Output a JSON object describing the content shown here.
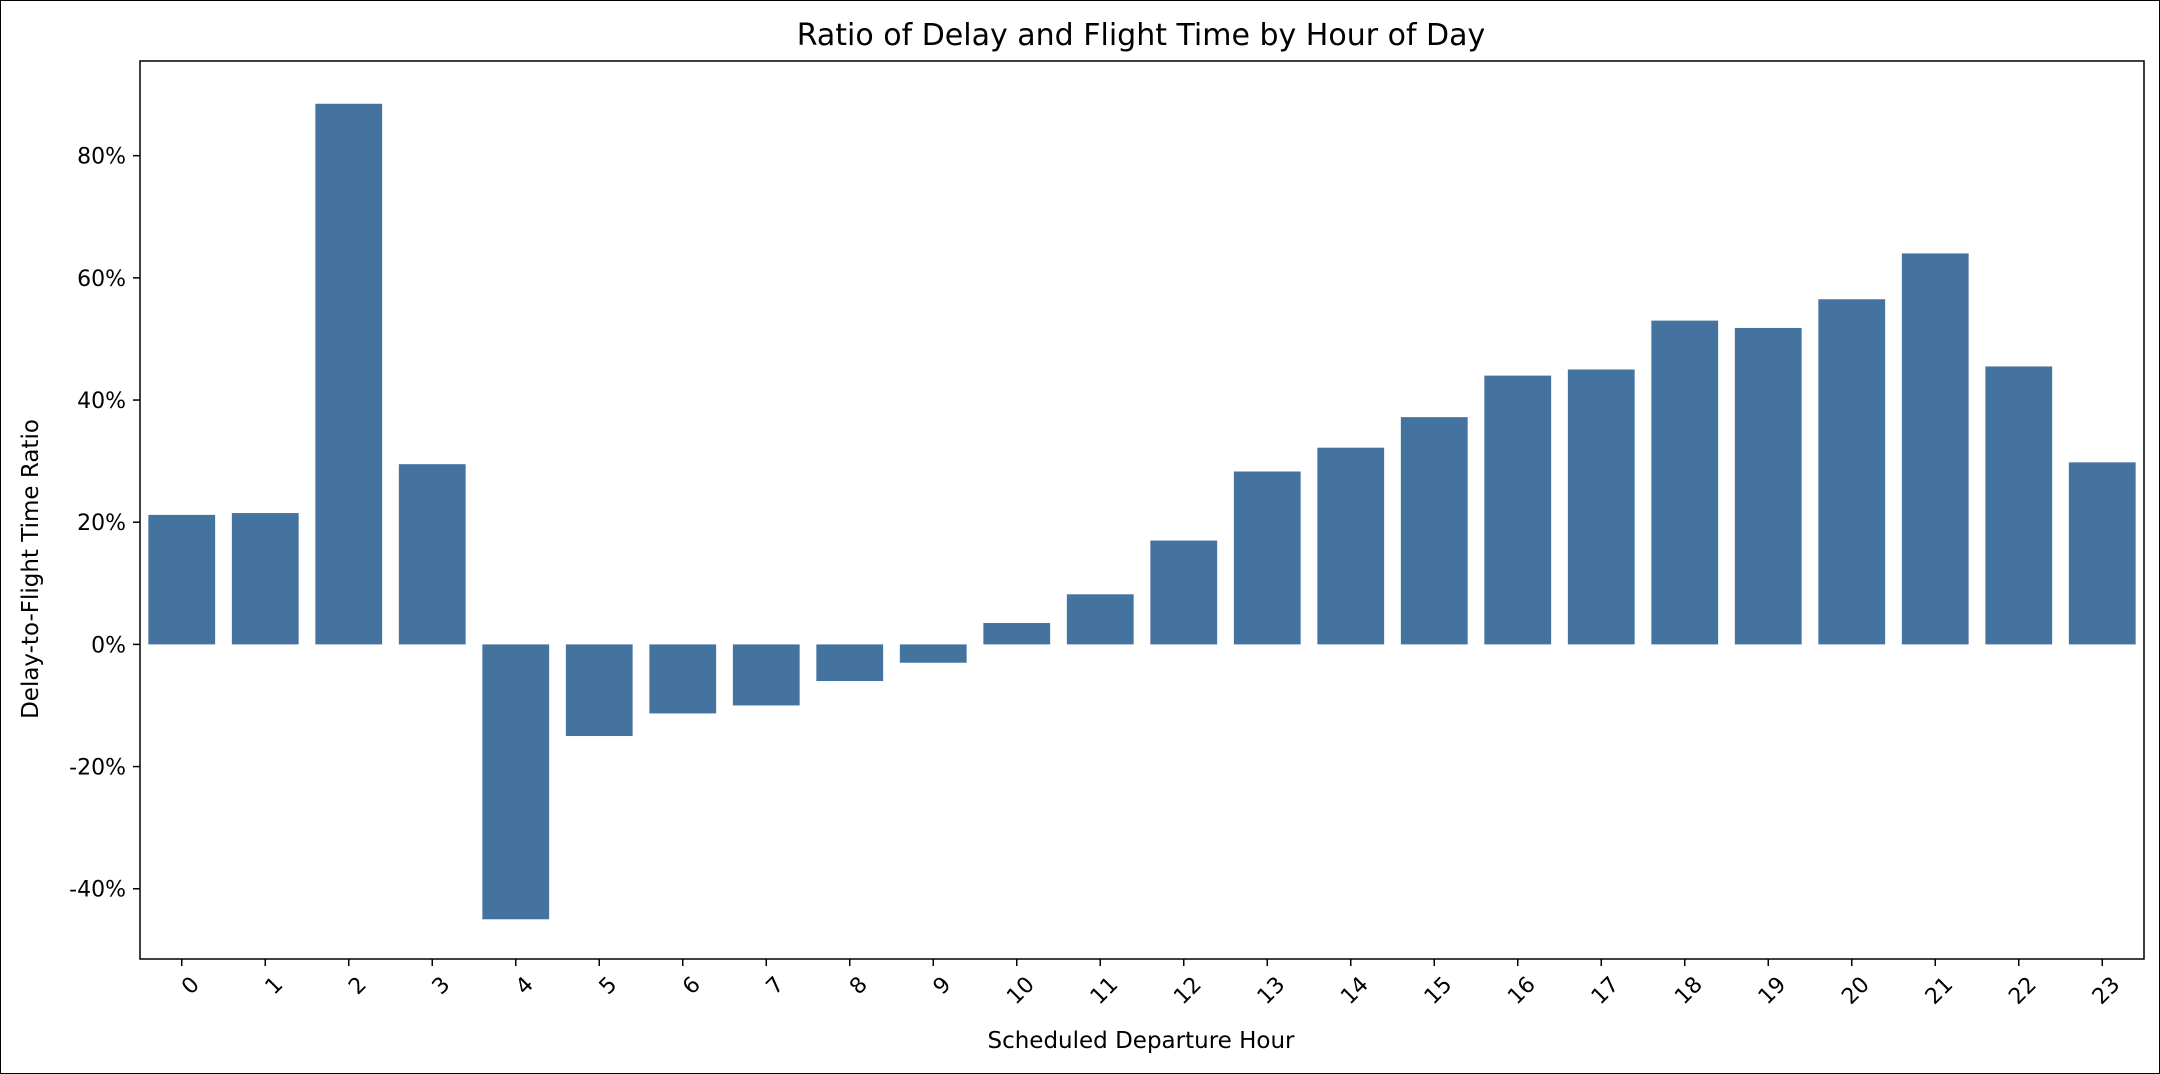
{
  "chart_data": {
    "type": "bar",
    "title": "Ratio of Delay and Flight Time by Hour of Day",
    "xlabel": "Scheduled Departure Hour",
    "ylabel": "Delay-to-Flight Time Ratio",
    "categories": [
      "0",
      "1",
      "2",
      "3",
      "4",
      "5",
      "6",
      "7",
      "8",
      "9",
      "10",
      "11",
      "12",
      "13",
      "14",
      "15",
      "16",
      "17",
      "18",
      "19",
      "20",
      "21",
      "22",
      "23"
    ],
    "values": [
      0.212,
      0.215,
      0.885,
      0.295,
      -0.45,
      -0.15,
      -0.113,
      -0.1,
      -0.06,
      -0.03,
      0.035,
      0.082,
      0.17,
      0.283,
      0.322,
      0.372,
      0.44,
      0.45,
      0.53,
      0.518,
      0.565,
      0.64,
      0.455,
      0.298
    ],
    "ylim": [
      -0.515,
      0.955
    ],
    "yticks": [
      -0.4,
      -0.2,
      0.0,
      0.2,
      0.4,
      0.6,
      0.8
    ],
    "ytick_labels": [
      "-40%",
      "-20%",
      "0%",
      "20%",
      "40%",
      "60%",
      "80%"
    ],
    "y_format": "percent",
    "bar_color": "#4573a0",
    "grid": false,
    "legend": "none"
  }
}
